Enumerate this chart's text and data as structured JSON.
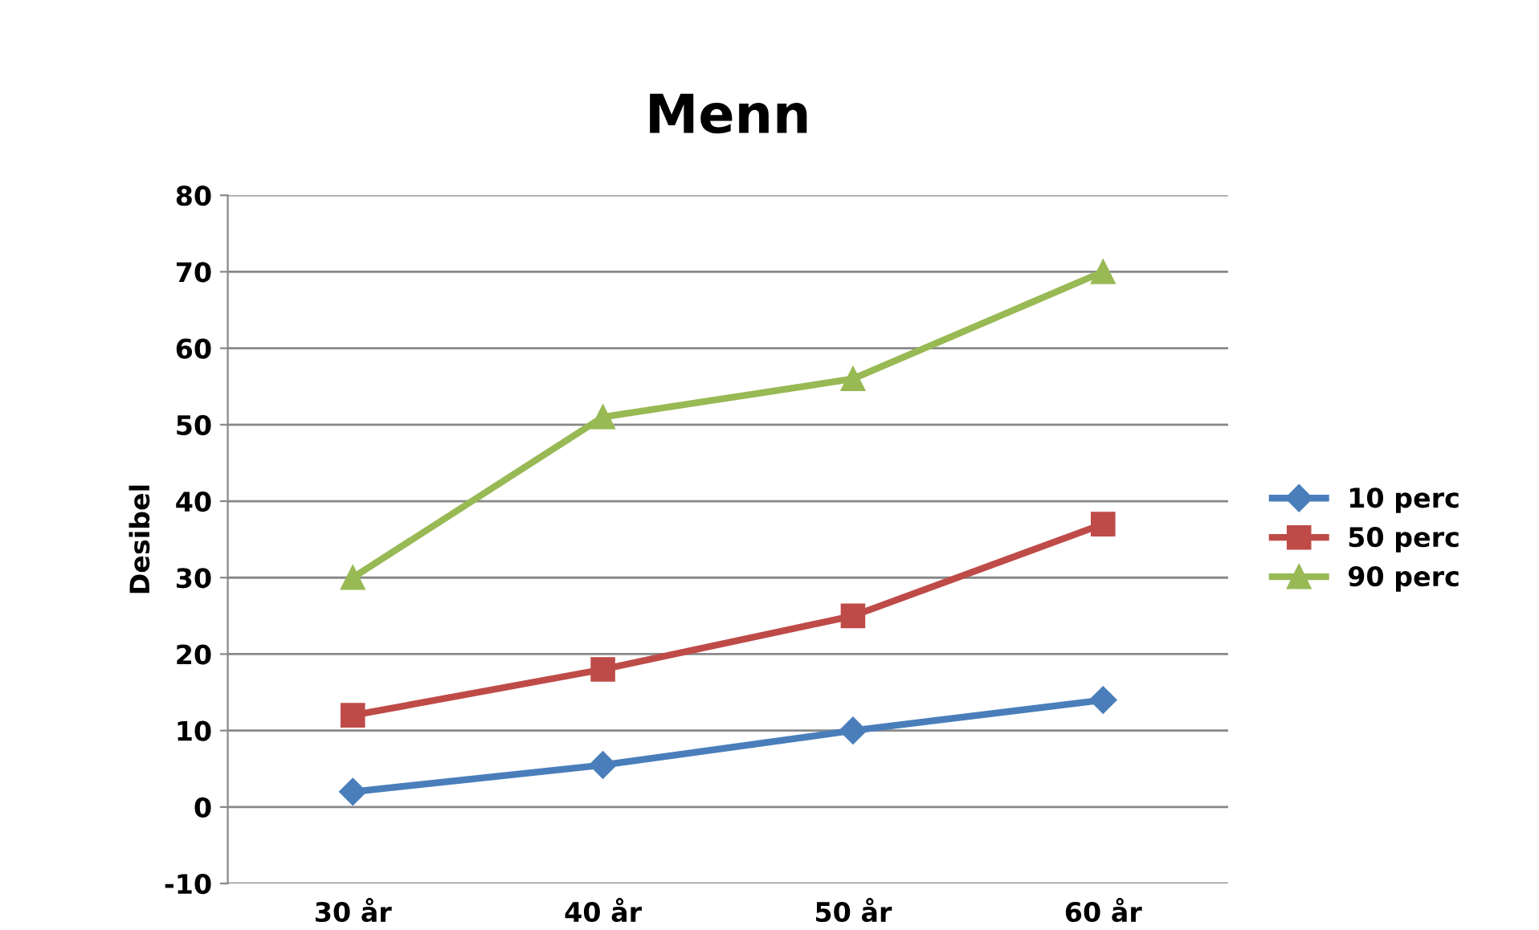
{
  "chart_data": {
    "type": "line",
    "title": "Menn",
    "ylabel": "Desibel",
    "categories": [
      "30 år",
      "40 år",
      "50 år",
      "60 år"
    ],
    "series": [
      {
        "name": "10 perc",
        "color": "#4a7ebb",
        "values": [
          2,
          5.5,
          10,
          14
        ],
        "marker": "diamond"
      },
      {
        "name": "50 perc",
        "color": "#be4b48",
        "values": [
          12,
          18,
          25,
          37
        ],
        "marker": "square"
      },
      {
        "name": "90 perc",
        "color": "#98b954",
        "values": [
          30,
          51,
          56,
          70
        ],
        "marker": "triangle"
      }
    ],
    "ylim": [
      -10,
      80
    ],
    "yticks": [
      -10,
      0,
      10,
      20,
      30,
      40,
      50,
      60,
      70,
      80
    ],
    "grid": "y",
    "legend": "right",
    "line_style": "solid"
  }
}
